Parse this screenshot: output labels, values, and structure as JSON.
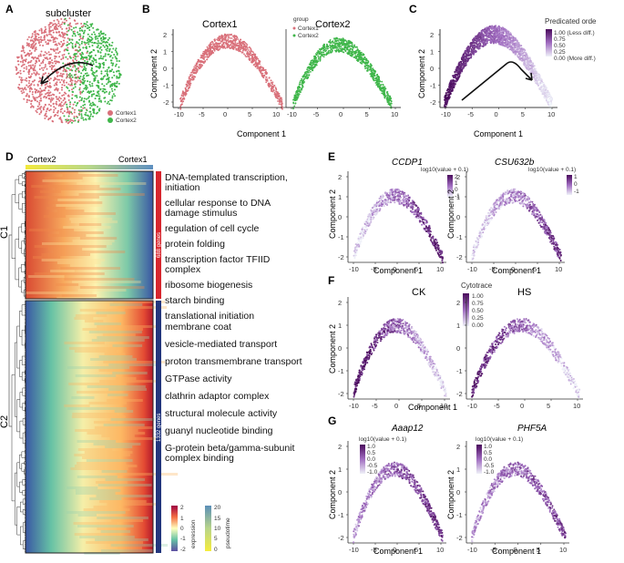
{
  "panel_labels": [
    "A",
    "B",
    "C",
    "D",
    "E",
    "F",
    "G"
  ],
  "panelA": {
    "title": "subcluster",
    "legend": [
      "Cortex1",
      "Cortex2"
    ],
    "colors": [
      "#d9707a",
      "#3fb64a"
    ]
  },
  "panelB": {
    "titles": [
      "Cortex1",
      "Cortex2"
    ],
    "legend_title": "group",
    "legend": [
      "Cortex1",
      "Cortex2"
    ],
    "xlabel": "Component 1",
    "ylabel": "Component 2",
    "xticks": [
      "-10",
      "-5",
      "0",
      "5",
      "10"
    ],
    "yticks": [
      "2",
      "1",
      "0",
      "-1",
      "-2"
    ]
  },
  "panelC": {
    "legend_title": "Predicated orde",
    "legend": [
      "1.00 (Less diff.)",
      "0.75",
      "0.50",
      "0.25",
      "0.00 (More diff.)"
    ],
    "xlabel": "Component 1",
    "ylabel": "Component 2",
    "xticks": [
      "-10",
      "-5",
      "0",
      "5",
      "10"
    ],
    "yticks": [
      "2",
      "1",
      "0",
      "-1",
      "-2"
    ]
  },
  "panelD": {
    "top_labels": [
      "Cortex2",
      "Cortex1"
    ],
    "cluster_labels": [
      "C1",
      "C2"
    ],
    "gene_counts": [
      "688 genes",
      "1332 genes"
    ],
    "c1_terms": [
      "DNA-templated transcription, initiation",
      "cellular response to DNA damage stimulus",
      "regulation of cell cycle",
      "protein folding",
      "transcription factor TFIID complex",
      "ribosome biogenesis",
      "starch binding",
      "translational initiation"
    ],
    "c2_terms": [
      "membrane coat",
      "vesicle-mediated transport",
      "proton transmembrane transport",
      "GTPase activity",
      "clathrin adaptor complex",
      "structural molecule activity",
      "guanyl nucleotide binding",
      "G-protein beta/gamma-subunit complex binding"
    ],
    "expr_legend": {
      "title": "expression",
      "ticks": [
        "2",
        "1",
        "0",
        "-1",
        "-2"
      ]
    },
    "pt_legend": {
      "title": "pseudotime",
      "ticks": [
        "20",
        "15",
        "10",
        "5",
        "0"
      ]
    }
  },
  "panelE": {
    "genes": [
      "CCDP1",
      "CSU632b"
    ],
    "legend_title": "log10(value + 0.1)",
    "legend_ticks": [
      [
        "2",
        "1",
        "0",
        "-1"
      ],
      [
        "1",
        "0",
        "-1"
      ]
    ],
    "xlabel": "Component 1",
    "ylabel": "Component 2",
    "xticks": [
      "-10",
      "-5",
      "0",
      "5",
      "10"
    ],
    "yticks": [
      "2",
      "1",
      "0",
      "-1",
      "-2"
    ]
  },
  "panelF": {
    "titles": [
      "CK",
      "HS"
    ],
    "legend_title": "Cytotrace",
    "legend_ticks": [
      "1.00",
      "0.75",
      "0.50",
      "0.25",
      "0.00"
    ],
    "xlabel": "Component 1",
    "ylabel": "Component 2",
    "xticks": [
      "-10",
      "-5",
      "0",
      "5",
      "10"
    ],
    "yticks": [
      "2",
      "1",
      "0",
      "-1",
      "-2"
    ]
  },
  "panelG": {
    "genes": [
      "Aaap12",
      "PHF5A"
    ],
    "legend_title": "log10(value + 0.1)",
    "legend_ticks": [
      "1.0",
      "0.5",
      "0.0",
      "-0.5",
      "-1.0"
    ],
    "xlabel": "Component 1",
    "ylabel": "Component 2",
    "xticks": [
      "-10",
      "-5",
      "0",
      "5",
      "10"
    ],
    "yticks": [
      "2",
      "1",
      "0",
      "-1",
      "-2"
    ]
  }
}
